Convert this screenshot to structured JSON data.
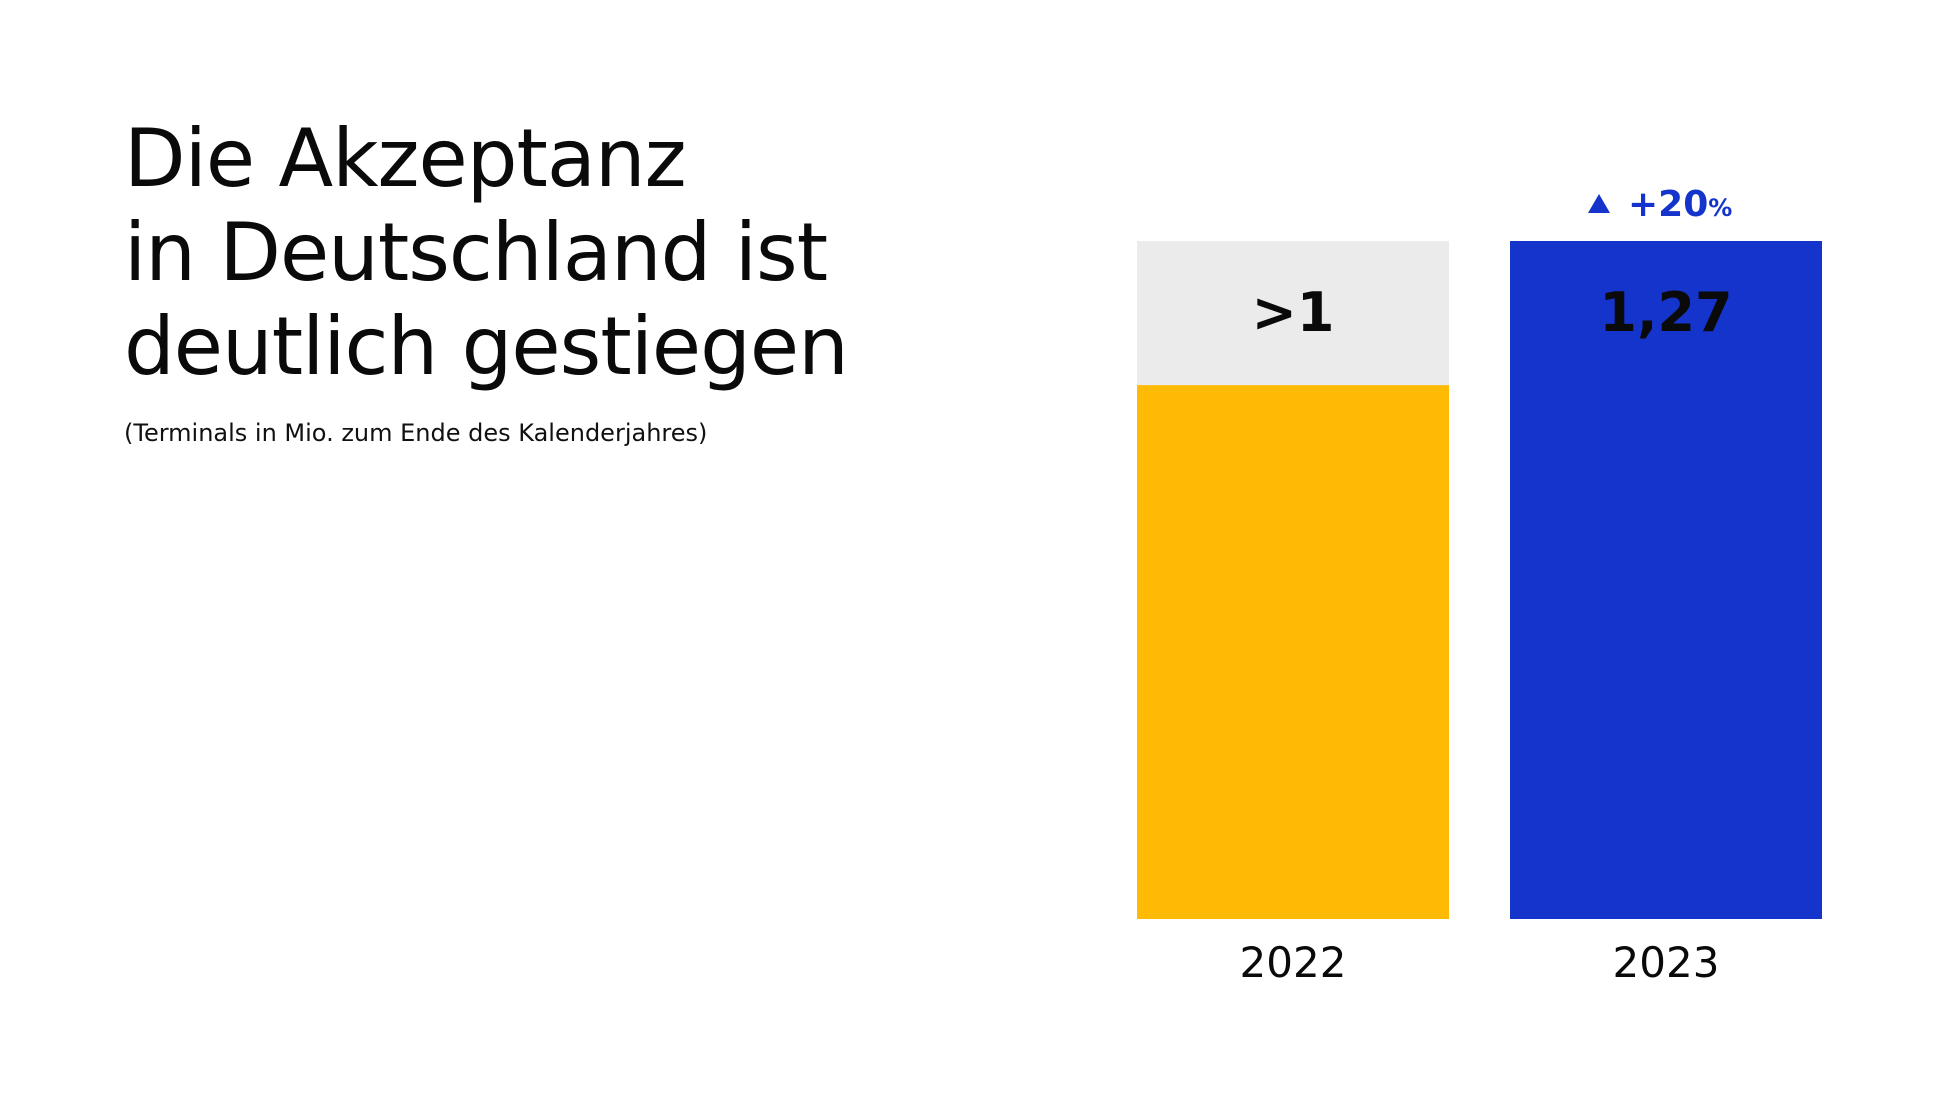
{
  "title_lines": [
    "Die Akzeptanz",
    "in Deutschland ist",
    "deutlich gestiegen"
  ],
  "subtitle": "(Terminals in Mio. zum Ende des Kalenderjahres)",
  "chart_data": {
    "type": "bar",
    "categories": [
      "2022",
      "2023"
    ],
    "values": [
      1,
      1.27
    ],
    "value_labels": [
      ">1",
      "1,27"
    ],
    "bar_colors": [
      "#ffba06",
      "#1434cb"
    ],
    "background_color": "#ebebeb",
    "ylim": [
      0,
      1.27
    ],
    "grid": false,
    "change_label": {
      "text": "+20",
      "suffix": "%",
      "direction": "up",
      "color": "#1434cb"
    }
  }
}
